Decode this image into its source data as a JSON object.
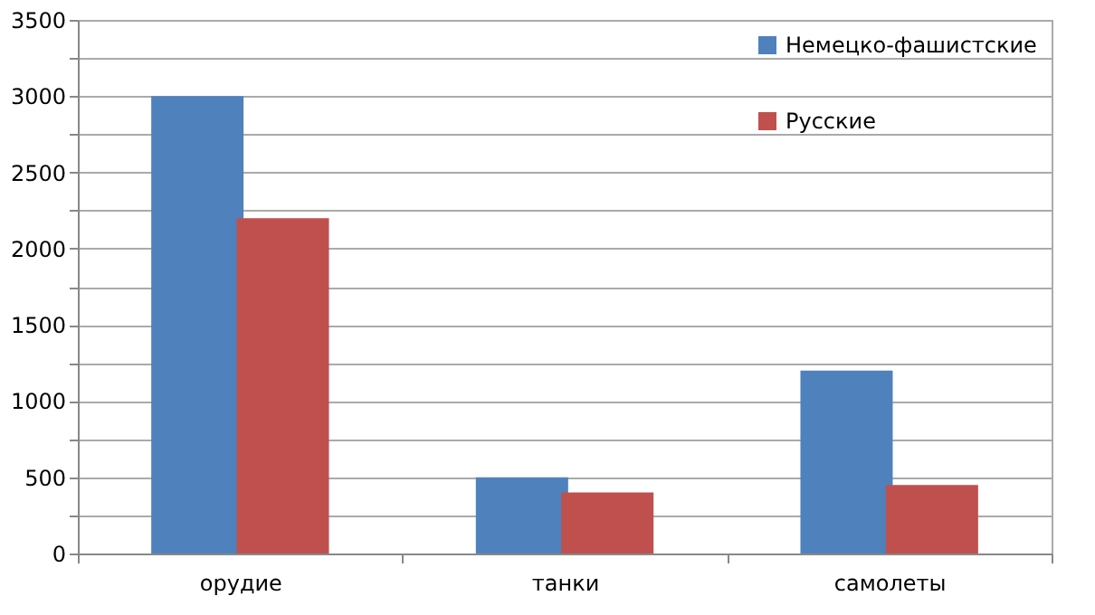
{
  "chart_data": {
    "type": "bar",
    "categories": [
      "орудие",
      "танки",
      "самолеты"
    ],
    "series": [
      {
        "name": "Немецко-фашистские",
        "color": "#4f81bd",
        "values": [
          3000,
          500,
          1200
        ]
      },
      {
        "name": "Русские",
        "color": "#c0504d",
        "values": [
          2200,
          400,
          450
        ]
      }
    ],
    "ylim": [
      0,
      3500
    ],
    "yticks": [
      0,
      {
        "value": 250,
        "label": null
      },
      500,
      {
        "value": 750,
        "label": null
      },
      1000,
      {
        "value": 1250,
        "label": null
      },
      1500,
      {
        "value": 1750,
        "label": null
      },
      2000,
      {
        "value": 2250,
        "label": null
      },
      2500,
      {
        "value": 2750,
        "label": null
      },
      3000,
      {
        "value": 3250,
        "label": null
      },
      3500
    ],
    "grid": true,
    "legend": "top right"
  }
}
